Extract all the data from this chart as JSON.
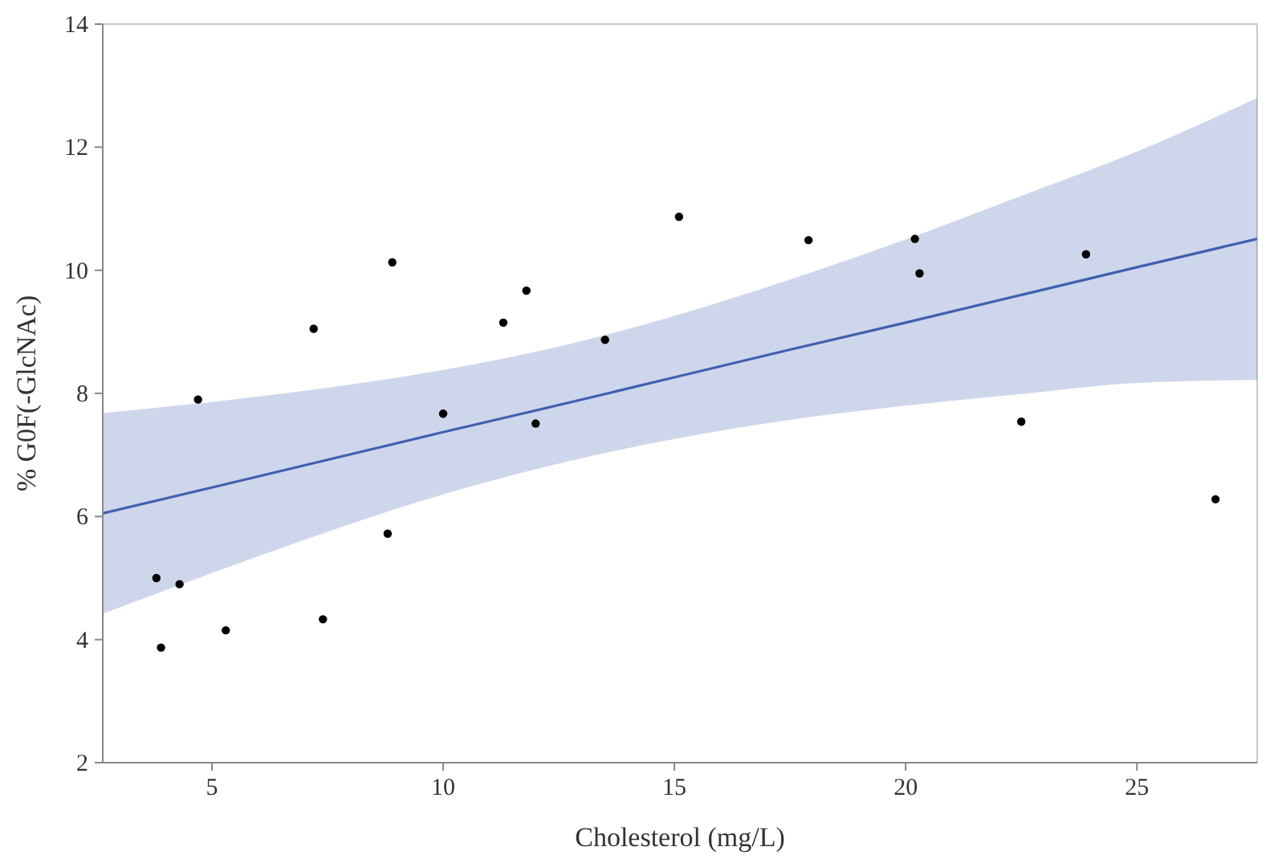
{
  "chart_data": {
    "type": "scatter",
    "xlabel": "Cholesterol (mg/L)",
    "ylabel": "% G0F(-GlcNAc)",
    "xlim": [
      2.64,
      27.6
    ],
    "ylim": [
      2,
      14
    ],
    "xticks": [
      5,
      10,
      15,
      20,
      25
    ],
    "yticks": [
      2,
      4,
      6,
      8,
      10,
      12,
      14
    ],
    "grid": false,
    "series": [
      {
        "color": "#000000",
        "marker": "circle",
        "x": [
          3.8,
          3.9,
          4.3,
          4.7,
          5.3,
          7.2,
          7.4,
          8.8,
          8.9,
          10.0,
          11.3,
          11.8,
          12.0,
          13.5,
          15.1,
          17.9,
          20.2,
          20.3,
          22.5,
          23.9,
          26.7
        ],
        "values": [
          5.0,
          3.87,
          4.9,
          7.9,
          4.15,
          9.05,
          4.33,
          5.72,
          10.13,
          7.67,
          9.15,
          9.67,
          7.51,
          8.87,
          10.87,
          10.49,
          10.51,
          9.95,
          7.54,
          10.26,
          6.28
        ]
      },
      {
        "type": "line",
        "color": "#4060b0",
        "x": [
          2.64,
          5,
          7.5,
          10,
          12.5,
          15,
          17.5,
          20,
          22.5,
          25,
          27.6
        ],
        "values": [
          6.05,
          6.47,
          6.92,
          7.37,
          7.81,
          8.26,
          8.71,
          9.15,
          9.6,
          10.05,
          10.51
        ],
        "lower": [
          4.42,
          5.08,
          5.75,
          6.36,
          6.86,
          7.26,
          7.57,
          7.8,
          7.99,
          8.17,
          8.22
        ],
        "upper": [
          7.68,
          7.86,
          8.09,
          8.38,
          8.76,
          9.26,
          9.85,
          10.5,
          11.21,
          11.93,
          12.8
        ]
      }
    ]
  }
}
